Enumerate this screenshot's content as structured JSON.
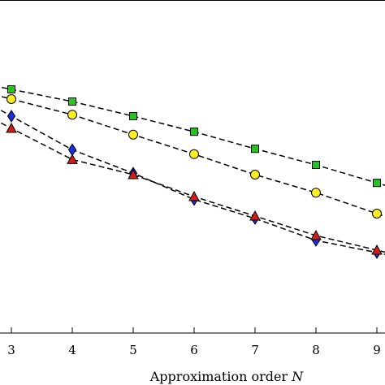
{
  "chart_data": {
    "type": "line",
    "xlabel": "Approximation order",
    "xlabel_var": "N",
    "ylabel": "",
    "title": "",
    "x": [
      3,
      4,
      5,
      6,
      7,
      8,
      9
    ],
    "xticks": [
      "3",
      "4",
      "5",
      "6",
      "7",
      "8",
      "9"
    ],
    "grid": false,
    "line_style": "dashed",
    "series": [
      {
        "marker": "square",
        "color": "#22c41e",
        "values": [
          2.3,
          2.05,
          1.75,
          1.43,
          1.08,
          0.75,
          0.38
        ]
      },
      {
        "marker": "circle",
        "color": "#ffee22",
        "values": [
          2.1,
          1.78,
          1.37,
          0.97,
          0.55,
          0.18,
          -0.25
        ]
      },
      {
        "marker": "diamond",
        "color": "#1a2ee8",
        "values": [
          1.75,
          1.06,
          0.58,
          0.04,
          -0.35,
          -0.8,
          -1.05
        ]
      },
      {
        "marker": "triangle",
        "color": "#d41b1b",
        "values": [
          1.5,
          0.86,
          0.55,
          0.1,
          -0.3,
          -0.7,
          -1.0
        ]
      }
    ]
  }
}
